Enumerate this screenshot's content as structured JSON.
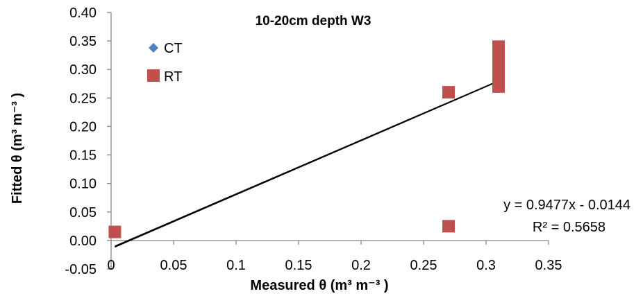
{
  "chart_data": {
    "type": "scatter",
    "title": "10-20cm depth W3",
    "xlabel": "Measured θ (m³ m⁻³ )",
    "ylabel": "Fitted θ (m³ m⁻³ )",
    "xlim": [
      0,
      0.35
    ],
    "ylim": [
      -0.05,
      0.4
    ],
    "x_ticks": [
      "0",
      "0.05",
      "0.1",
      "0.15",
      "0.2",
      "0.25",
      "0.3",
      "0.35"
    ],
    "y_ticks": [
      "-0.05",
      "0.00",
      "0.05",
      "0.10",
      "0.15",
      "0.20",
      "0.25",
      "0.30",
      "0.35",
      "0.40"
    ],
    "grid": false,
    "legend_position": "top-left",
    "series": [
      {
        "name": "CT",
        "marker": "diamond",
        "color": "#4F81BD",
        "points": []
      },
      {
        "name": "RT",
        "marker": "square",
        "color": "#C0504D",
        "points": [
          [
            0.003,
            0.015
          ],
          [
            0.27,
            0.26
          ],
          [
            0.27,
            0.025
          ],
          [
            0.31,
            0.27
          ],
          [
            0.31,
            0.28
          ],
          [
            0.31,
            0.29
          ],
          [
            0.31,
            0.3
          ],
          [
            0.31,
            0.31
          ],
          [
            0.31,
            0.32
          ],
          [
            0.31,
            0.33
          ],
          [
            0.31,
            0.34
          ]
        ]
      }
    ],
    "trendlines": [
      {
        "x": [
          0.003,
          0.31
        ],
        "y": [
          -0.01,
          0.28
        ]
      },
      {
        "x": [
          0.003,
          0.31
        ],
        "y": [
          -0.0116,
          0.2794
        ]
      }
    ],
    "annotations": {
      "equation": "y = 0.9477x - 0.0144",
      "r_squared": "R² = 0.5658"
    }
  }
}
